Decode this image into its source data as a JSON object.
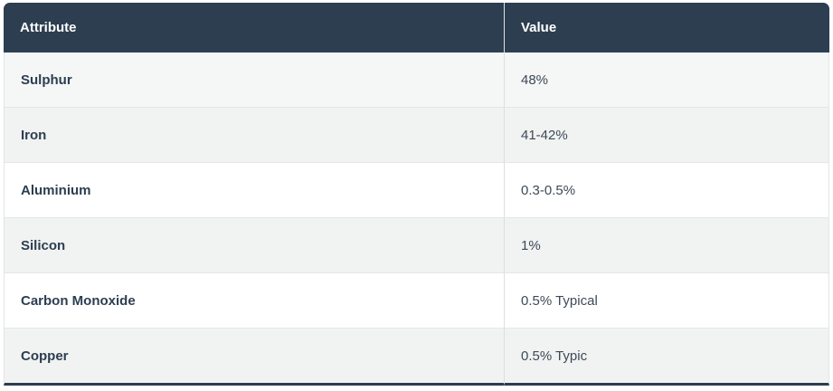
{
  "table": {
    "columns": [
      "Attribute",
      "Value"
    ],
    "rows": [
      {
        "attribute": "Sulphur",
        "value": "48%"
      },
      {
        "attribute": "Iron",
        "value": "41-42%"
      },
      {
        "attribute": "Aluminium",
        "value": "0.3-0.5%"
      },
      {
        "attribute": "Silicon",
        "value": "1%"
      },
      {
        "attribute": "Carbon Monoxide",
        "value": "0.5% Typical"
      },
      {
        "attribute": "Copper",
        "value": "0.5% Typic"
      }
    ]
  },
  "chart_data": {
    "type": "table",
    "columns": [
      "Attribute",
      "Value"
    ],
    "rows": [
      [
        "Sulphur",
        "48%"
      ],
      [
        "Iron",
        "41-42%"
      ],
      [
        "Aluminium",
        "0.3-0.5%"
      ],
      [
        "Silicon",
        "1%"
      ],
      [
        "Carbon Monoxide",
        "0.5% Typical"
      ],
      [
        "Copper",
        "0.5% Typic"
      ]
    ]
  },
  "colors": {
    "header_bg": "#2d3e50",
    "header_text": "#ffffff",
    "attribute_text": "#2c3e50",
    "value_text": "#3d4a57",
    "stripe_row_bg": "#f1f2f2",
    "first_row_bg": "#f5f6f6",
    "white_row_bg": "#ffffff",
    "row_divider": "#e4e6e8",
    "bottom_border": "#2c3c50"
  }
}
